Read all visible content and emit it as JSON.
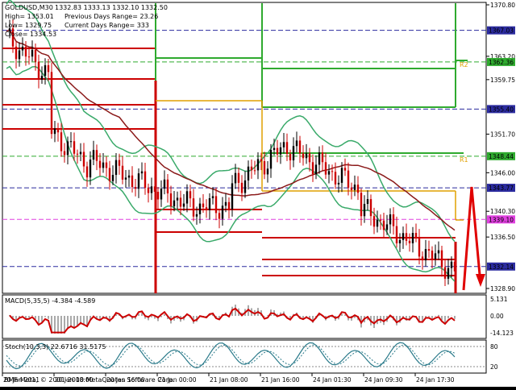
{
  "window": {
    "symbol": "GOLDUSD,M30",
    "ohlc": "1332.83 1333.13 1332.10 1332.50",
    "info_high": "High= 1353.01",
    "info_low": "Low= 1329.75",
    "info_close": "Close= 1334.53",
    "prev_range": "Previous Days Range= 23.26",
    "curr_range": "Current Days Range= 333",
    "copyright": "BMF-Meta, © 2001-2010 MetaQuotes Software Corp."
  },
  "price_axis": {
    "ticks": [
      "1370.80",
      "1363.20",
      "1359.75",
      "1351.70",
      "1346.00",
      "1340.30",
      "1336.50",
      "1328.90"
    ],
    "tags": [
      {
        "label": "1367.03",
        "bg": "#2b2b9f",
        "fg": "#ffffff"
      },
      {
        "label": "1362.36",
        "bg": "#2faa2f",
        "fg": "#ffffff"
      },
      {
        "label": "1355.40",
        "bg": "#2b2b9f",
        "fg": "#ffffff"
      },
      {
        "label": "1348.44",
        "bg": "#2faa2f",
        "fg": "#ffffff"
      },
      {
        "label": "1343.77",
        "bg": "#2b2b9f",
        "fg": "#ffffff"
      },
      {
        "label": "1339.10",
        "bg": "#e040e0",
        "fg": "#ffffff"
      },
      {
        "label": "1332.14",
        "bg": "#2b2b9f",
        "fg": "#ffffff"
      }
    ]
  },
  "level_labels": {
    "r2": "R2",
    "r1": "R1"
  },
  "macd": {
    "title": "MACD(5,35,5) -4.384 -4.589",
    "ticks": [
      "5.131",
      "0.00",
      "-14.123"
    ]
  },
  "stoch": {
    "title": "Stoch(10,3,3) 22.6716 31.5175",
    "ticks": [
      "80",
      "20"
    ]
  },
  "time_axis": [
    "20 Jan 2011",
    "20 Jan 08:00",
    "20 Jan 16:00",
    "21 Jan 00:00",
    "21 Jan 08:00",
    "21 Jan 16:00",
    "24 Jan 01:30",
    "24 Jan 09:30",
    "24 Jan 17:30"
  ],
  "colors": {
    "bull": "#000000",
    "bear": "#cc0000",
    "bands": "#3aaa6a",
    "ma": "#8b1a1a",
    "pivot": "#cc0000",
    "r": "#2faa2f",
    "s": "#e0a000"
  }
}
